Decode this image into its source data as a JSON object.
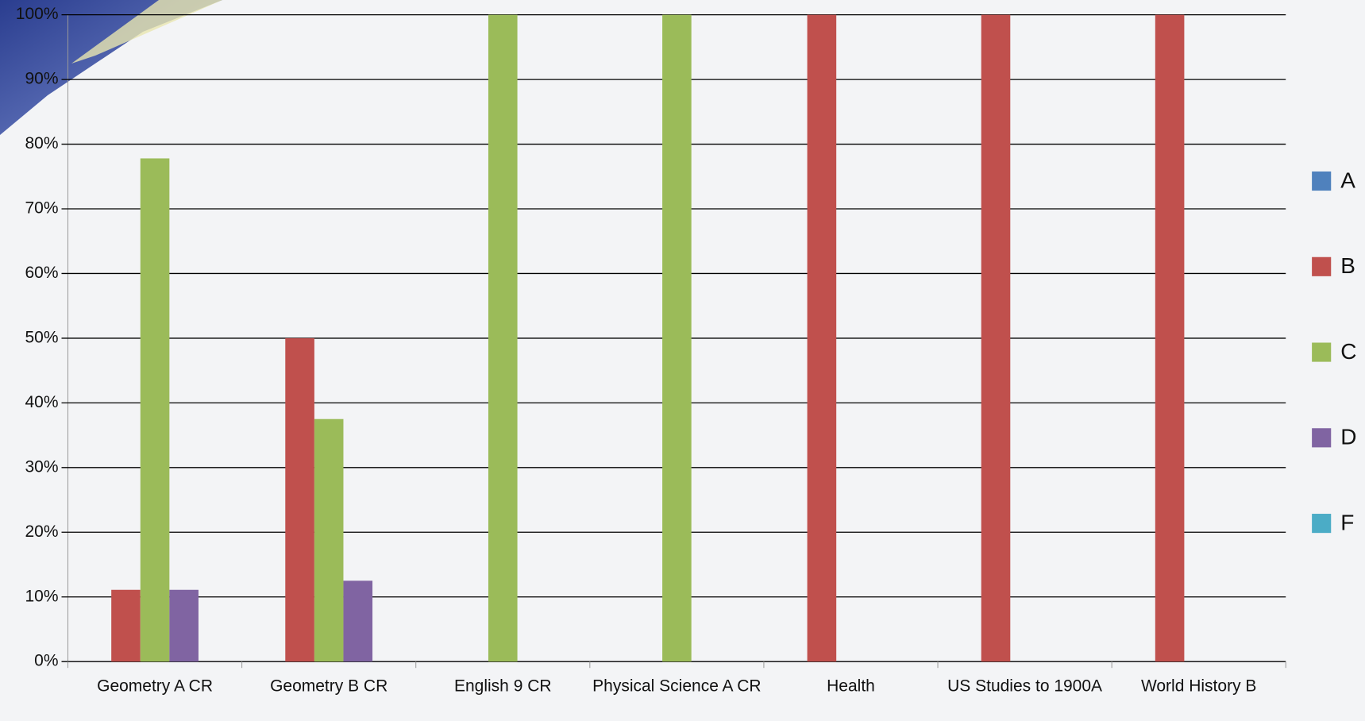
{
  "chart_data": {
    "type": "bar",
    "categories": [
      "Geometry A CR",
      "Geometry B CR",
      "English 9 CR",
      "Physical Science A CR",
      "Health",
      "US Studies to 1900A",
      "World History B"
    ],
    "series": [
      {
        "name": "A",
        "color": "#4f81bd",
        "values": [
          0,
          0,
          0,
          0,
          0,
          0,
          0
        ]
      },
      {
        "name": "B",
        "color": "#c0504d",
        "values": [
          11.1,
          50,
          0,
          0,
          100,
          100,
          100
        ]
      },
      {
        "name": "C",
        "color": "#9bbb59",
        "values": [
          77.8,
          37.5,
          100,
          100,
          0,
          0,
          0
        ]
      },
      {
        "name": "D",
        "color": "#8064a2",
        "values": [
          11.1,
          12.5,
          0,
          0,
          0,
          0,
          0
        ]
      },
      {
        "name": "F",
        "color": "#4bacc6",
        "values": [
          0,
          0,
          0,
          0,
          0,
          0,
          0
        ]
      }
    ],
    "ylim": [
      0,
      100
    ],
    "yticks": [
      {
        "value": 0,
        "label": "0%"
      },
      {
        "value": 10,
        "label": "10%"
      },
      {
        "value": 20,
        "label": "20%"
      },
      {
        "value": 30,
        "label": "30%"
      },
      {
        "value": 40,
        "label": "40%"
      },
      {
        "value": 50,
        "label": "50%"
      },
      {
        "value": 60,
        "label": "60%"
      },
      {
        "value": 70,
        "label": "70%"
      },
      {
        "value": 80,
        "label": "80%"
      },
      {
        "value": 90,
        "label": "90%"
      },
      {
        "value": 100,
        "label": "100%"
      }
    ],
    "grid": true,
    "legend": "right"
  }
}
